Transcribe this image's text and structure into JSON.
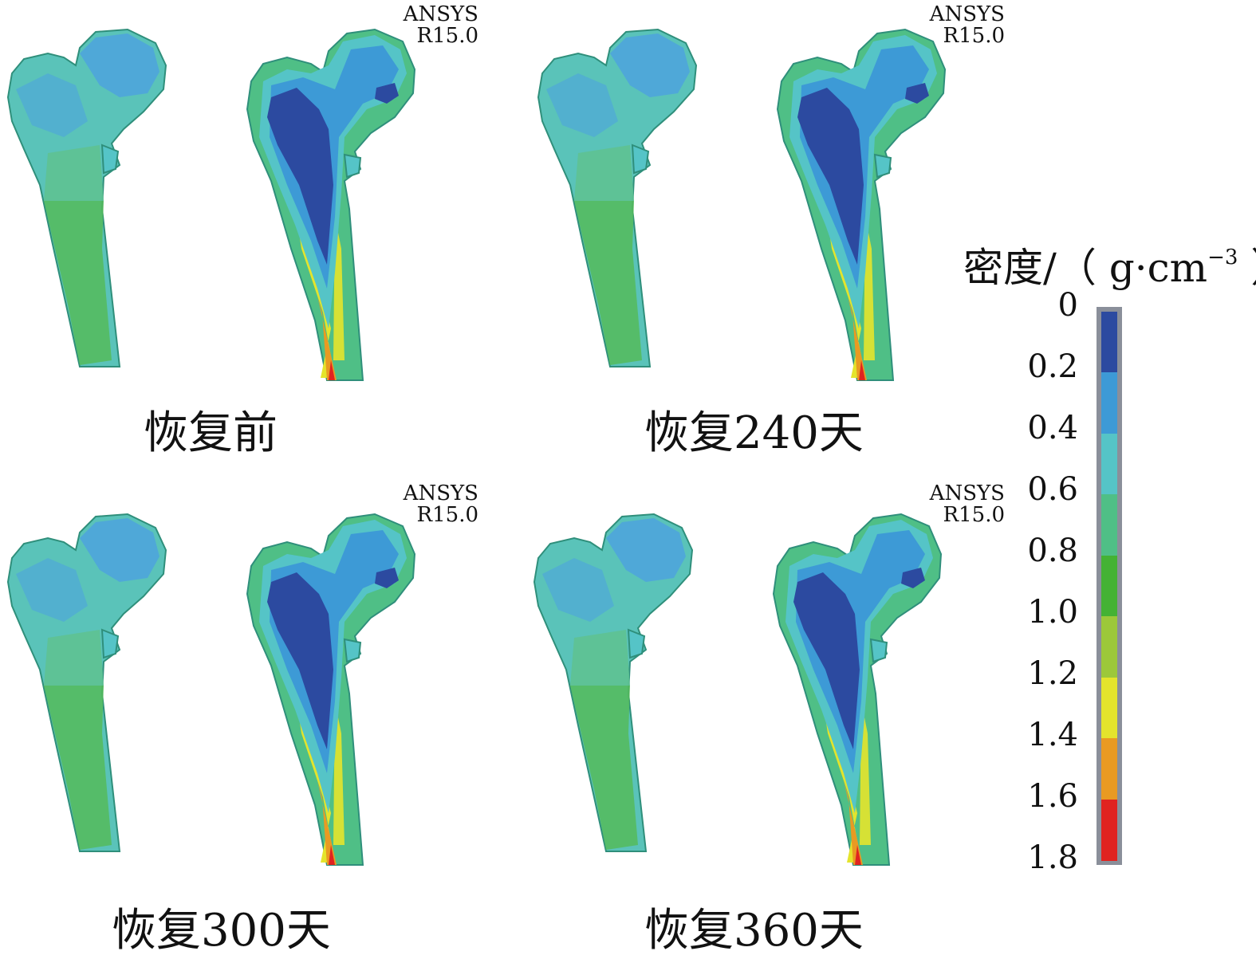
{
  "watermark": {
    "line1": "ANSYS",
    "line2": "R15.0"
  },
  "panels": [
    {
      "caption": "恢复前"
    },
    {
      "caption": "恢复240天"
    },
    {
      "caption": "恢复300天"
    },
    {
      "caption": "恢复360天"
    }
  ],
  "legend": {
    "title": "密度/（ g·cm",
    "title_sup": "−3",
    "title_end": " ）",
    "ticks": [
      "0",
      "0.2",
      "0.4",
      "0.6",
      "0.8",
      "1.0",
      "1.2",
      "1.4",
      "1.6",
      "1.8"
    ],
    "colors": [
      "#2c4aa0",
      "#3d9ad6",
      "#55c4c7",
      "#4fbf86",
      "#44b234",
      "#9cc83a",
      "#e4e42c",
      "#e99a22",
      "#e02320"
    ]
  }
}
